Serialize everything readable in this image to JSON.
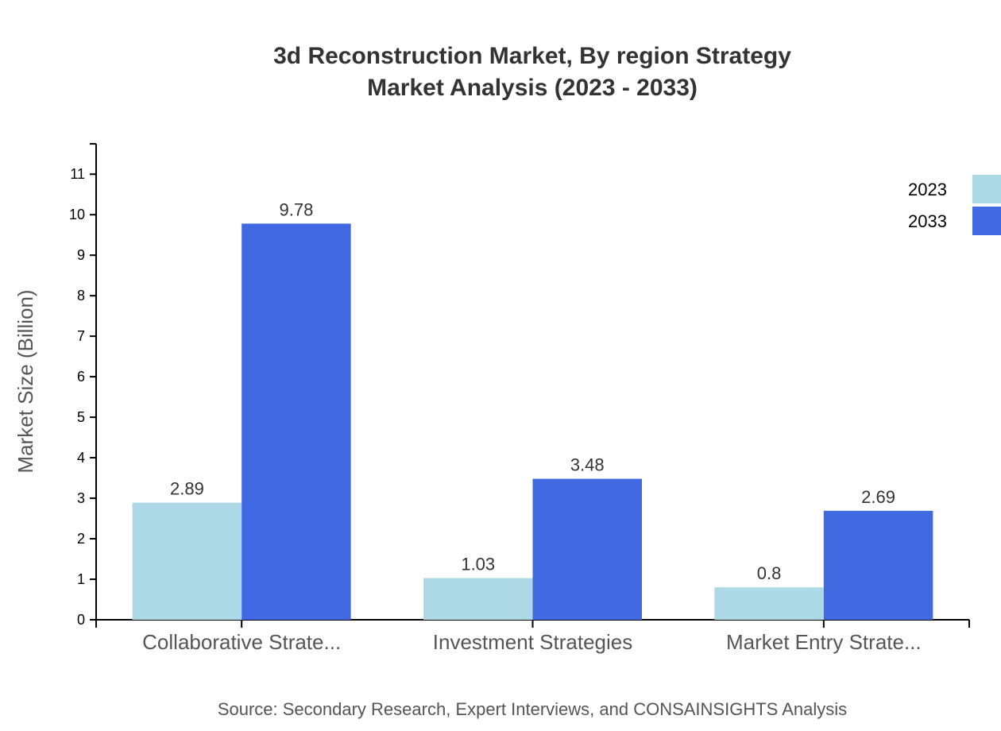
{
  "chart_data": {
    "type": "bar",
    "title_lines": [
      "3d Reconstruction Market, By region Strategy",
      "Market Analysis (2023 - 2033)"
    ],
    "ylabel": "Market Size (Billion)",
    "xlabel": "",
    "categories": [
      "Collaborative Strate...",
      "Investment Strategies",
      "Market Entry Strate..."
    ],
    "series": [
      {
        "name": "2023",
        "color": "#ADD8E6",
        "values": [
          2.89,
          1.03,
          0.8
        ]
      },
      {
        "name": "2033",
        "color": "#4169E1",
        "values": [
          9.78,
          3.48,
          2.69
        ]
      }
    ],
    "ylim": [
      0,
      11.75
    ],
    "yticks": [
      0,
      1,
      2,
      3,
      4,
      5,
      6,
      7,
      8,
      9,
      10,
      11
    ],
    "grid": false,
    "legend_position": "top-right",
    "source": "Source: Secondary Research, Expert Interviews, and CONSAINSIGHTS Analysis"
  }
}
